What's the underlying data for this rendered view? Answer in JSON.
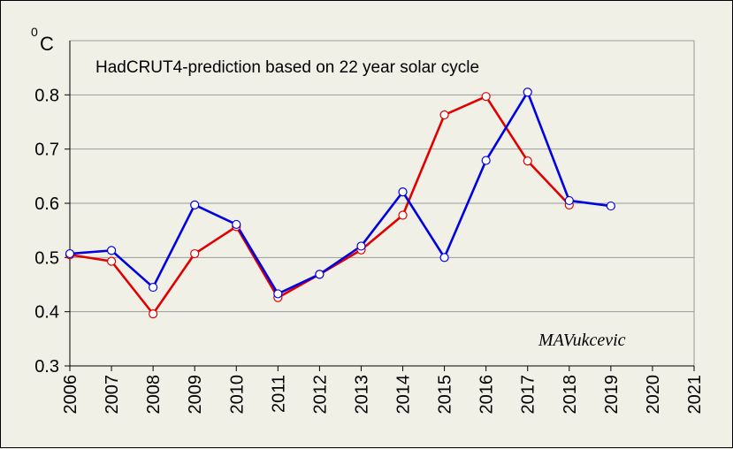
{
  "chart_data": {
    "type": "line",
    "title": "HadCRUT4-prediction based on 22 year solar cycle",
    "ylabel_sup": "0",
    "ylabel": "C",
    "signature": "MAVukcevic",
    "x": [
      "2006",
      "2007",
      "2008",
      "2009",
      "2010",
      "2011",
      "2012",
      "2013",
      "2014",
      "2015",
      "2016",
      "2017",
      "2018",
      "2019",
      "2020",
      "2021"
    ],
    "ylim": [
      0.3,
      0.9
    ],
    "yticks": [
      "0.3",
      "0.4",
      "0.5",
      "0.6",
      "0.7",
      "0.8"
    ],
    "grid": true,
    "series": [
      {
        "color": "#e00000",
        "values": [
          0.505,
          0.493,
          0.396,
          0.507,
          0.557,
          0.426,
          0.469,
          0.514,
          0.578,
          0.763,
          0.797,
          0.678,
          0.597,
          null,
          null,
          null
        ]
      },
      {
        "color": "#0000e0",
        "values": [
          0.507,
          0.513,
          0.445,
          0.597,
          0.561,
          0.433,
          0.469,
          0.521,
          0.621,
          0.5,
          0.679,
          0.805,
          0.605,
          0.595,
          null,
          null
        ]
      }
    ]
  }
}
